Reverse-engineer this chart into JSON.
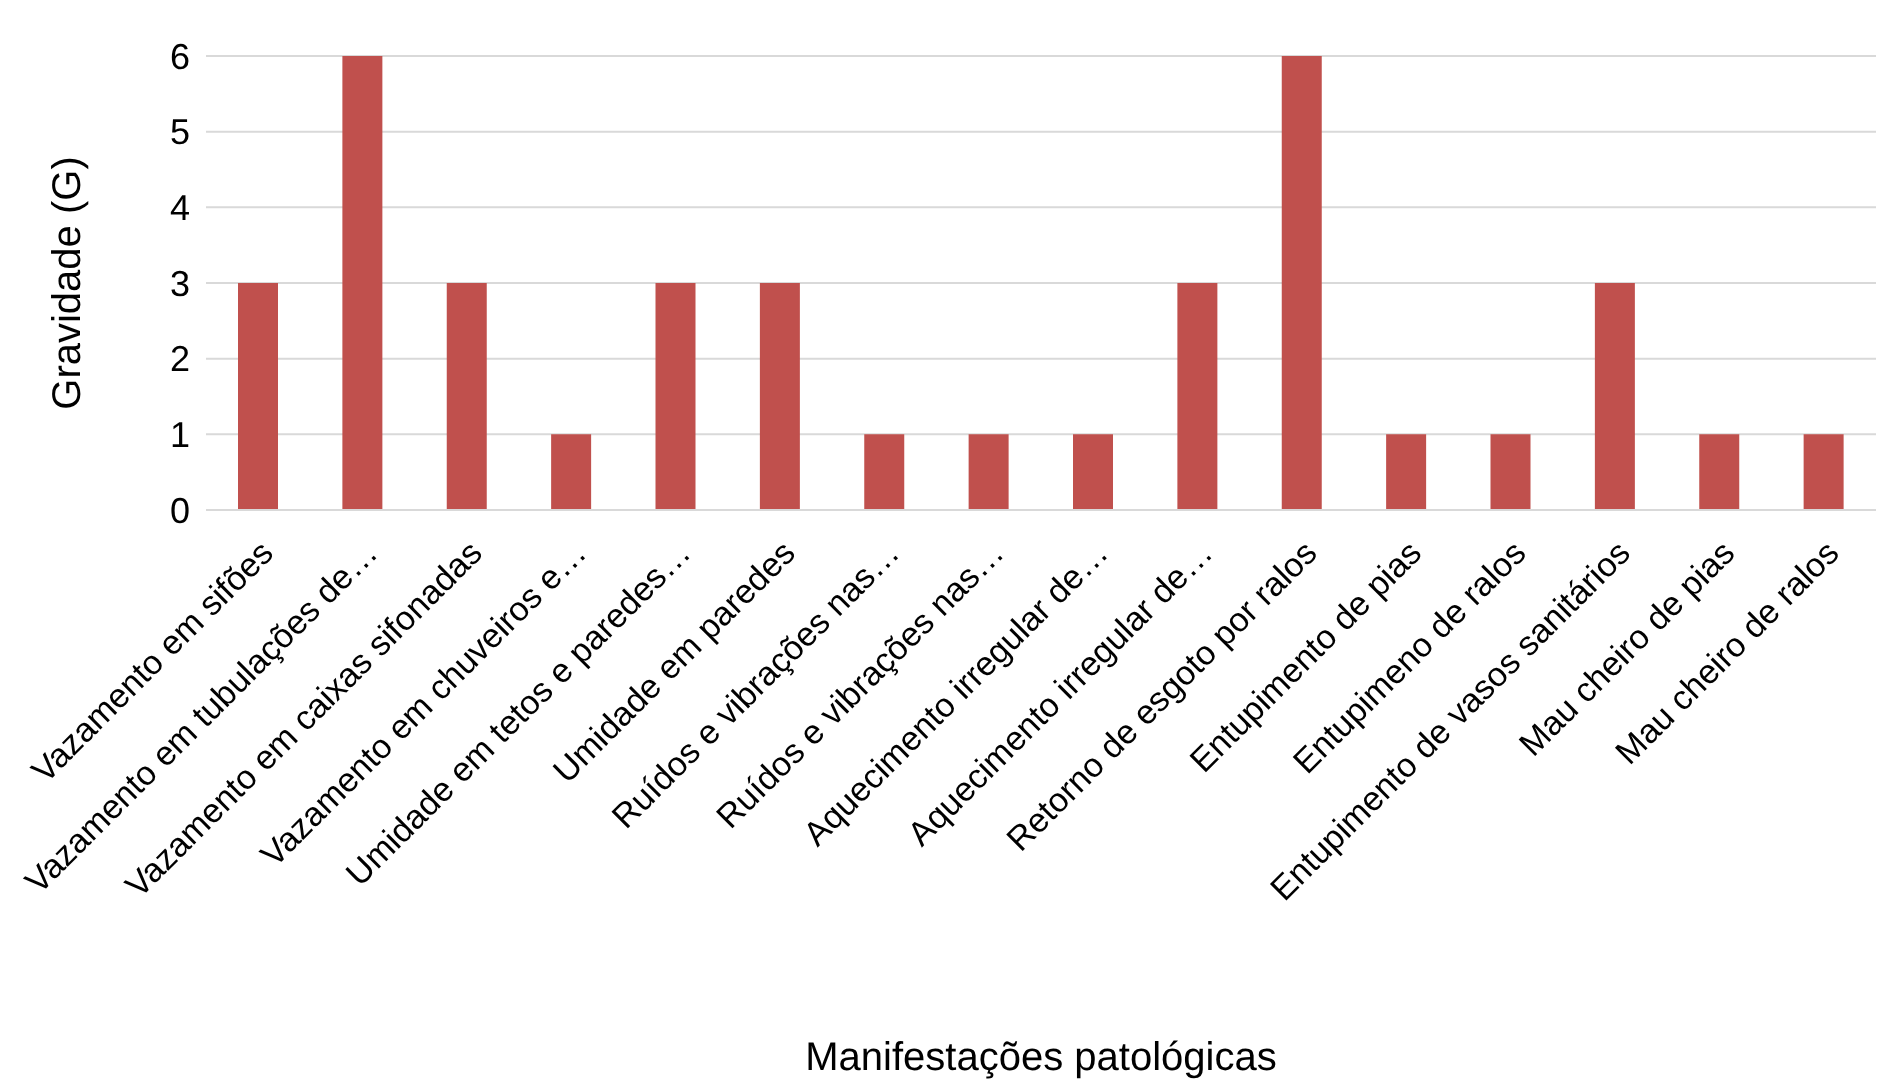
{
  "chart_data": {
    "type": "bar",
    "xlabel": "Manifestações patológicas",
    "ylabel": "Gravidade (G)",
    "categories": [
      "Vazamento em sifões",
      "Vazamento em tubulações de…",
      "Vazamento em caixas sifonadas",
      "Vazamento em chuveiros e…",
      "Umidade em tetos e paredes…",
      "Umidade em paredes",
      "Ruídos e vibrações nas…",
      "Ruídos e vibrações nas…",
      "Aquecimento irregular de…",
      "Aquecimento irregular de…",
      "Retorno de esgoto por ralos",
      "Entupimento de pias",
      "Entupimeno de ralos",
      "Entupimento de vasos sanitários",
      "Mau cheiro de pias",
      "Mau cheiro de ralos"
    ],
    "values": [
      3,
      6,
      3,
      1,
      3,
      3,
      1,
      1,
      1,
      3,
      6,
      1,
      1,
      3,
      1,
      1
    ],
    "color": "#c0504d",
    "ylim": [
      0,
      6
    ],
    "yticks": [
      0,
      1,
      2,
      3,
      4,
      5,
      6
    ],
    "grid": "y"
  }
}
